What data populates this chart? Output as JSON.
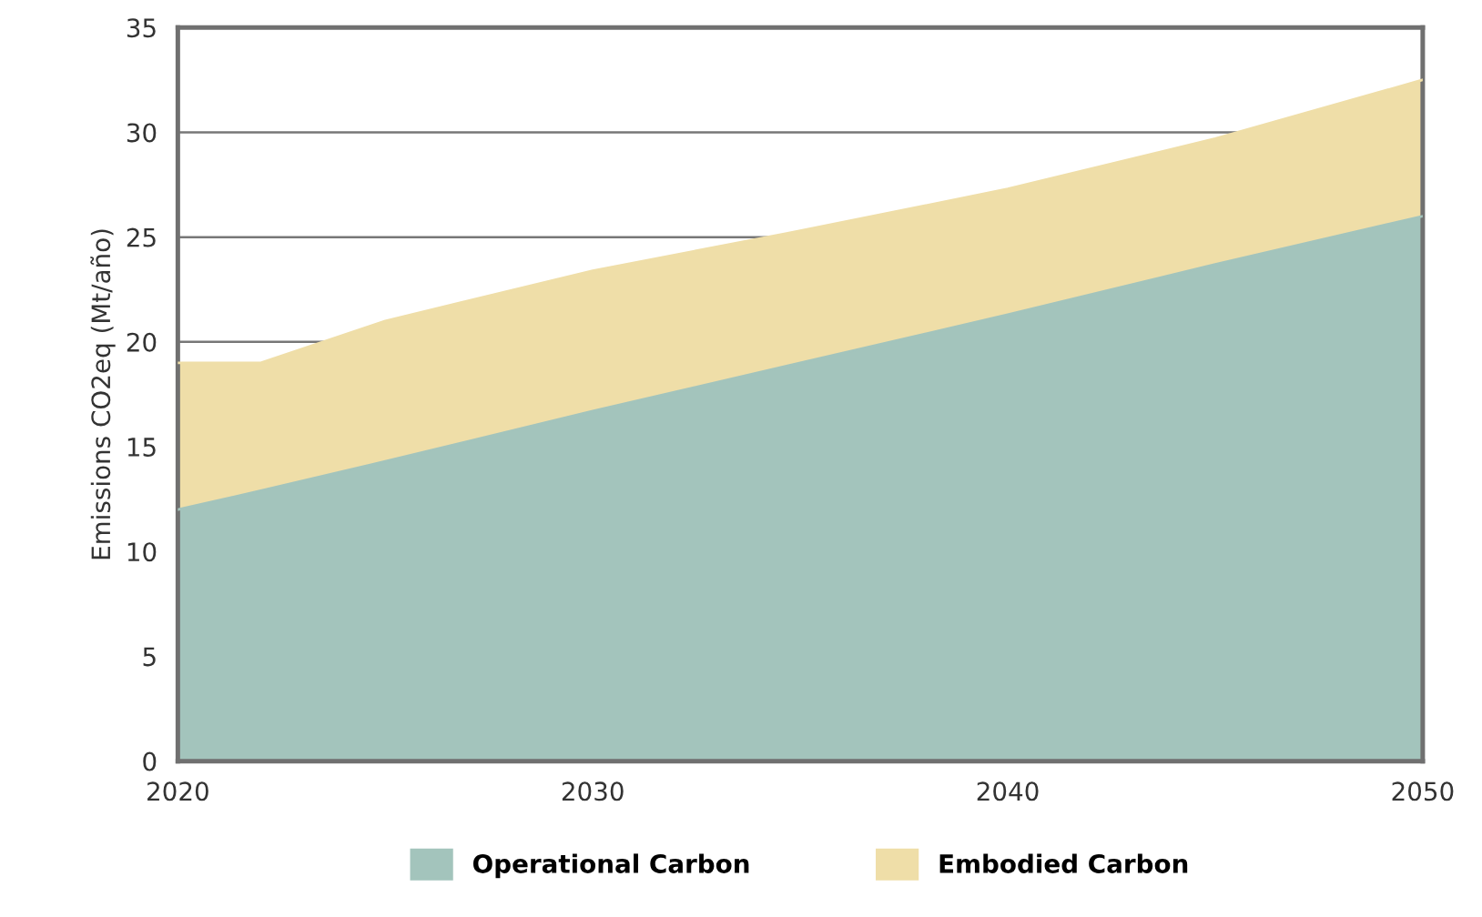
{
  "chart_data": {
    "type": "area",
    "stacked": true,
    "ylabel": "Emissions CO2eq (Mt/año)",
    "x": [
      2020,
      2022,
      2025,
      2030,
      2035,
      2040,
      2045,
      2050
    ],
    "series": [
      {
        "name": "Operational Carbon",
        "color": "#a3c4bc",
        "values": [
          12,
          12.9,
          14.3,
          16.7,
          19,
          21.3,
          23.7,
          26
        ]
      },
      {
        "name": "Embodied Carbon",
        "color": "#efdea8",
        "values": [
          7,
          6.1,
          6.7,
          6.7,
          6.3,
          6,
          6,
          6.5
        ]
      }
    ],
    "xlim": [
      2020,
      2050
    ],
    "xticks": [
      2020,
      2030,
      2040,
      2050
    ],
    "ylim": [
      0,
      35
    ],
    "yticks": [
      0,
      5,
      10,
      15,
      20,
      25,
      30,
      35
    ],
    "grid": "y",
    "legend": "bottom"
  }
}
